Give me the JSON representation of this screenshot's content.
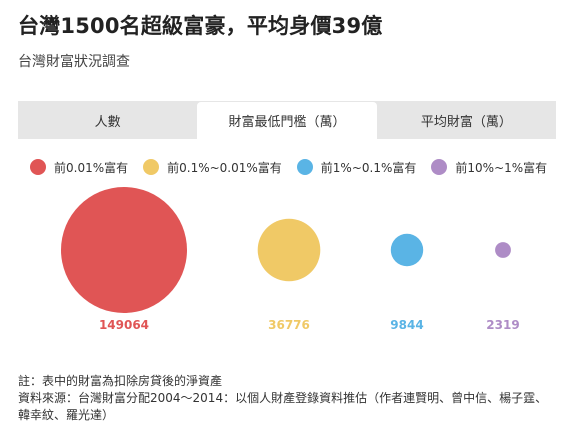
{
  "title": "台灣1500名超級富豪，平均身價39億",
  "subtitle": "台灣財富狀況調查",
  "tabs": [
    {
      "label": "人數",
      "active": false
    },
    {
      "label": "財富最低門檻（萬）",
      "active": true
    },
    {
      "label": "平均財富（萬）",
      "active": false
    }
  ],
  "chart_data": {
    "type": "bubble",
    "legend_position": "top-left",
    "categories": [
      "前0.01%富有",
      "前0.1%~0.01%富有",
      "前1%~0.1%富有",
      "前10%~1%富有"
    ],
    "values": [
      149064,
      36776,
      9844,
      2319
    ],
    "value_labels": [
      "149064",
      "36776",
      "9844",
      "2319"
    ],
    "colors": [
      "#e05555",
      "#f0c966",
      "#5ab4e5",
      "#ae8cc6"
    ]
  },
  "notes": {
    "line1": "註：表中的財富為扣除房貸後的淨資產",
    "line2": "資料來源：台灣財富分配2004～2014：以個人財產登錄資料推估（作者連賢明、曾中信、楊子霆、韓幸紋、羅光達）"
  }
}
